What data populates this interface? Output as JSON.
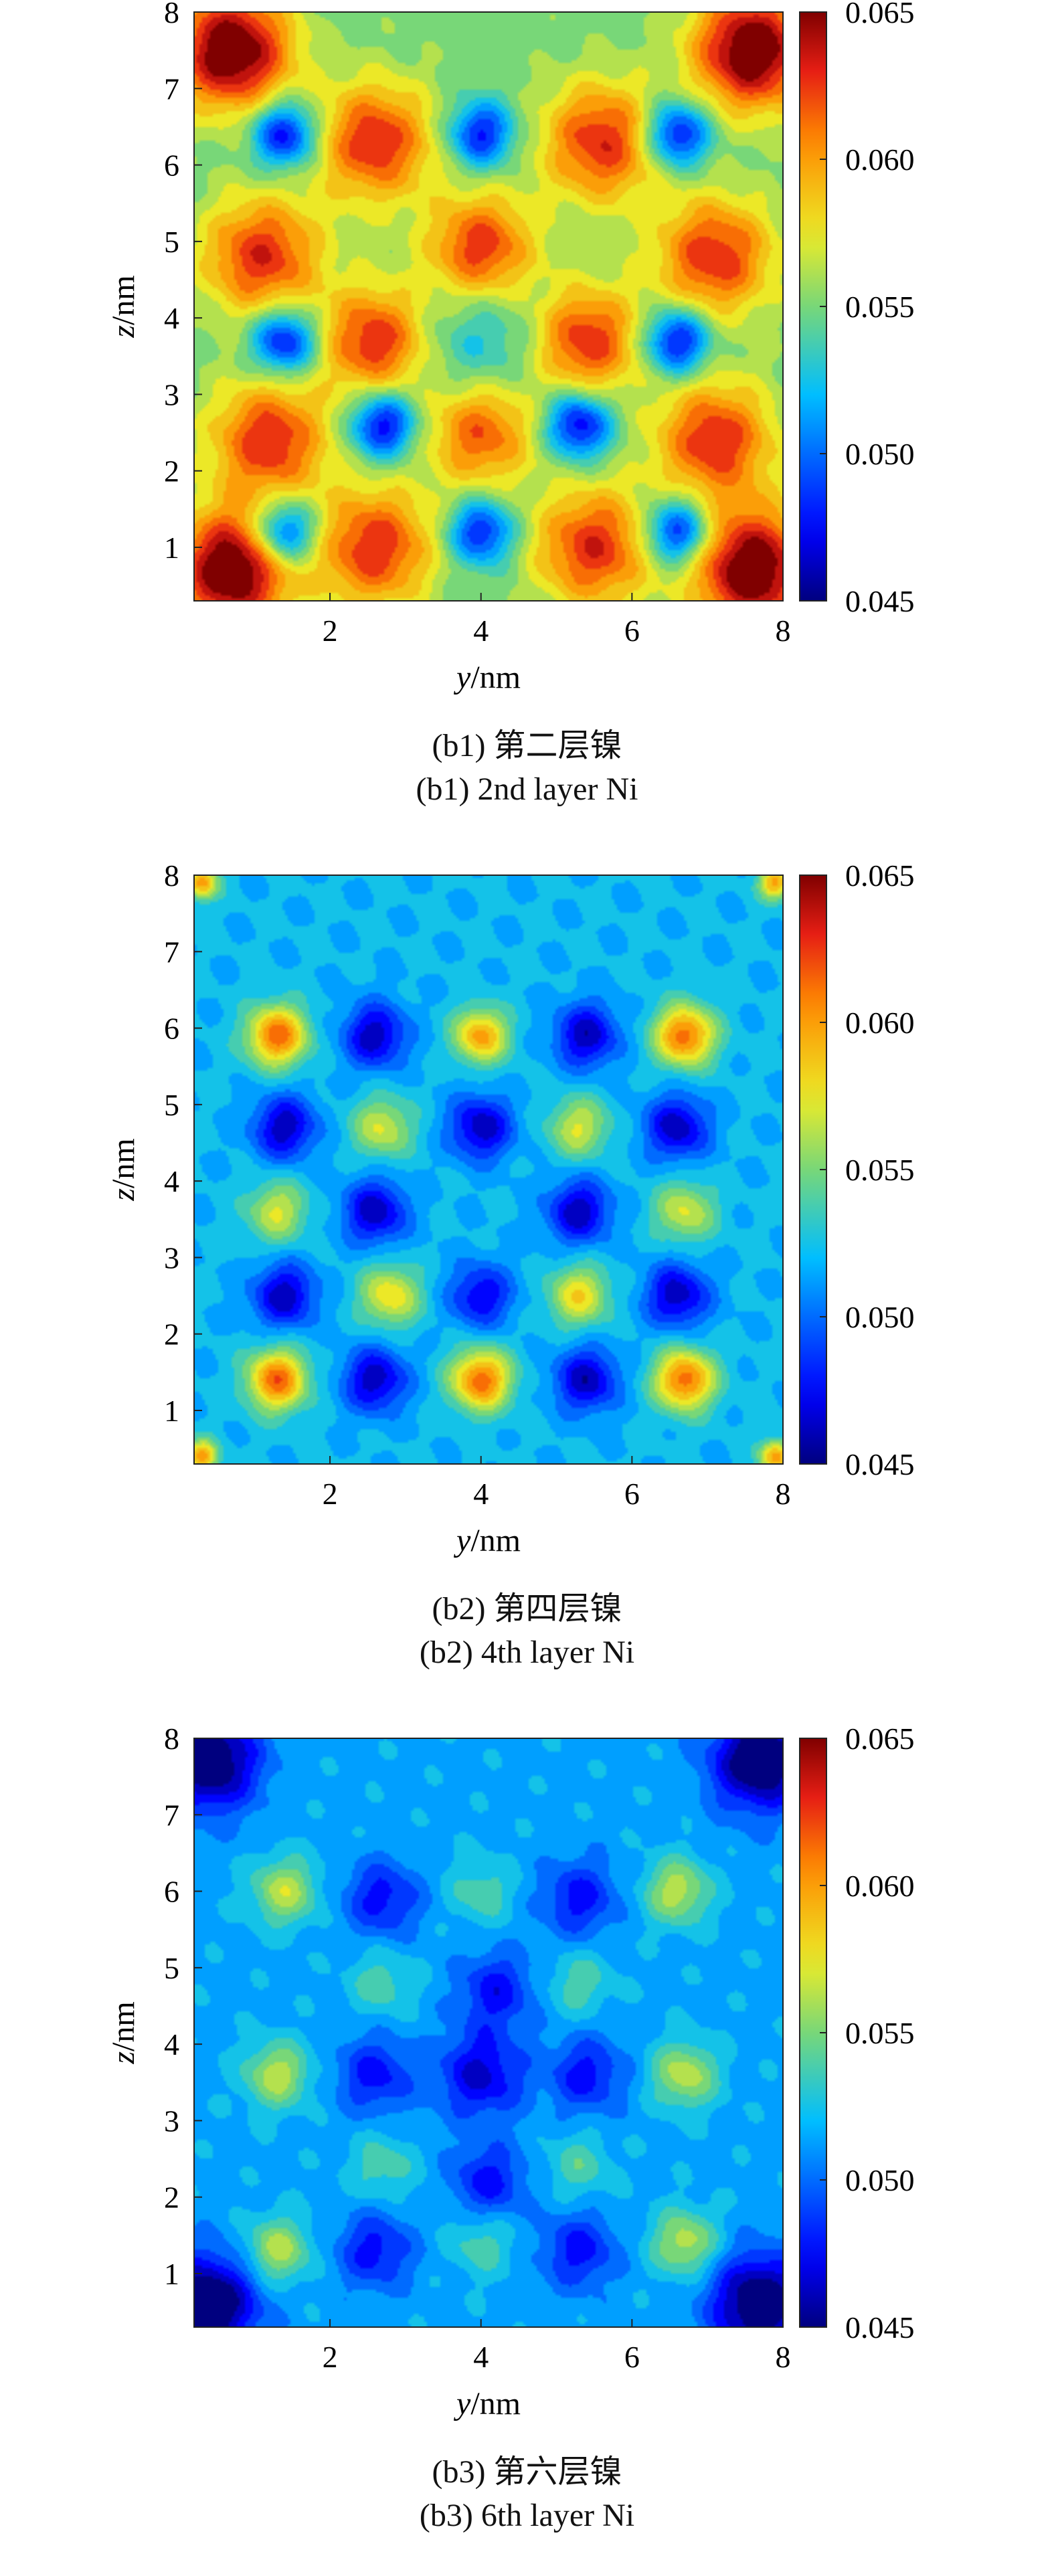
{
  "chart_data": [
    {
      "type": "heatmap",
      "caption_cn": "(b1) 第二层镍",
      "caption_en": "(b1) 2nd layer Ni",
      "xlabel_italic": "y",
      "xlabel_unit": "/nm",
      "ylabel_italic": "z",
      "ylabel_unit": "/nm",
      "xlim": [
        0.2,
        8
      ],
      "ylim": [
        0.3,
        8
      ],
      "xticks": [
        2,
        4,
        6,
        8
      ],
      "yticks": [
        1,
        2,
        3,
        4,
        5,
        6,
        7,
        8
      ],
      "clim": [
        0.045,
        0.065
      ],
      "cticks": [
        "0.045",
        "0.050",
        "0.055",
        "0.060",
        "0.065"
      ],
      "base": 0.055,
      "features": [
        [
          0.7,
          7.5,
          0.0115,
          0.55
        ],
        [
          7.6,
          7.5,
          0.0115,
          0.55
        ],
        [
          0.7,
          0.7,
          0.0115,
          0.55
        ],
        [
          7.6,
          0.7,
          0.0115,
          0.55
        ],
        [
          2.6,
          6.3,
          0.008,
          0.55
        ],
        [
          5.6,
          6.3,
          0.008,
          0.55
        ],
        [
          4.0,
          4.9,
          0.008,
          0.5
        ],
        [
          1.1,
          4.8,
          0.008,
          0.55
        ],
        [
          7.1,
          4.8,
          0.008,
          0.55
        ],
        [
          2.6,
          3.7,
          0.008,
          0.5
        ],
        [
          5.4,
          3.7,
          0.008,
          0.5
        ],
        [
          1.2,
          2.4,
          0.008,
          0.55
        ],
        [
          7.1,
          2.4,
          0.008,
          0.55
        ],
        [
          4.0,
          2.5,
          0.007,
          0.5
        ],
        [
          2.6,
          1.0,
          0.008,
          0.55
        ],
        [
          5.5,
          1.0,
          0.008,
          0.55
        ],
        [
          1.4,
          6.4,
          -0.0085,
          0.3
        ],
        [
          4.0,
          6.4,
          -0.0075,
          0.3
        ],
        [
          6.6,
          6.4,
          -0.0085,
          0.3
        ],
        [
          1.4,
          3.7,
          -0.0085,
          0.3
        ],
        [
          4.0,
          3.7,
          -0.003,
          0.6
        ],
        [
          6.6,
          3.7,
          -0.0085,
          0.3
        ],
        [
          2.7,
          2.6,
          -0.0085,
          0.3
        ],
        [
          5.3,
          2.6,
          -0.0085,
          0.3
        ],
        [
          1.4,
          1.2,
          -0.0085,
          0.3
        ],
        [
          4.0,
          1.2,
          -0.0075,
          0.3
        ],
        [
          6.6,
          1.2,
          -0.0085,
          0.3
        ]
      ]
    },
    {
      "type": "heatmap",
      "caption_cn": "(b2) 第四层镍",
      "caption_en": "(b2) 4th layer Ni",
      "xlabel_italic": "y",
      "xlabel_unit": "/nm",
      "ylabel_italic": "z",
      "ylabel_unit": "/nm",
      "xlim": [
        0.2,
        8
      ],
      "ylim": [
        0.3,
        8
      ],
      "xticks": [
        2,
        4,
        6,
        8
      ],
      "yticks": [
        1,
        2,
        3,
        4,
        5,
        6,
        7,
        8
      ],
      "clim": [
        0.045,
        0.065
      ],
      "cticks": [
        "0.045",
        "0.050",
        "0.055",
        "0.060",
        "0.065"
      ],
      "base": 0.052,
      "features": [
        [
          1.3,
          5.9,
          0.0095,
          0.28
        ],
        [
          4.0,
          5.9,
          0.008,
          0.25
        ],
        [
          6.7,
          5.9,
          0.0095,
          0.28
        ],
        [
          1.3,
          1.4,
          0.0095,
          0.28
        ],
        [
          4.0,
          1.4,
          0.0095,
          0.28
        ],
        [
          6.7,
          1.4,
          0.0095,
          0.28
        ],
        [
          2.7,
          4.7,
          0.005,
          0.28
        ],
        [
          5.3,
          4.7,
          0.005,
          0.28
        ],
        [
          1.3,
          3.6,
          0.005,
          0.28
        ],
        [
          6.7,
          3.6,
          0.005,
          0.28
        ],
        [
          2.8,
          2.5,
          0.006,
          0.28
        ],
        [
          5.3,
          2.5,
          0.006,
          0.28
        ],
        [
          2.6,
          5.9,
          -0.006,
          0.3
        ],
        [
          5.4,
          5.9,
          -0.006,
          0.3
        ],
        [
          1.4,
          4.7,
          -0.006,
          0.3
        ],
        [
          4.0,
          4.7,
          -0.006,
          0.3
        ],
        [
          6.6,
          4.7,
          -0.006,
          0.3
        ],
        [
          2.6,
          3.6,
          -0.006,
          0.3
        ],
        [
          5.3,
          3.6,
          -0.006,
          0.3
        ],
        [
          1.4,
          2.5,
          -0.006,
          0.3
        ],
        [
          4.0,
          2.5,
          -0.005,
          0.3
        ],
        [
          6.6,
          2.5,
          -0.006,
          0.3
        ],
        [
          2.6,
          1.4,
          -0.006,
          0.3
        ],
        [
          5.4,
          1.4,
          -0.006,
          0.3
        ],
        [
          0.3,
          7.9,
          0.008,
          0.15
        ],
        [
          7.9,
          7.9,
          0.008,
          0.15
        ],
        [
          0.3,
          0.4,
          0.008,
          0.15
        ],
        [
          7.9,
          0.4,
          0.008,
          0.15
        ]
      ]
    },
    {
      "type": "heatmap",
      "caption_cn": "(b3) 第六层镍",
      "caption_en": "(b3) 6th layer Ni",
      "xlabel_italic": "y",
      "xlabel_unit": "/nm",
      "ylabel_italic": "z",
      "ylabel_unit": "/nm",
      "xlim": [
        0.2,
        8
      ],
      "ylim": [
        0.3,
        8
      ],
      "xticks": [
        2,
        4,
        6,
        8
      ],
      "yticks": [
        1,
        2,
        3,
        4,
        5,
        6,
        7,
        8
      ],
      "clim": [
        0.045,
        0.065
      ],
      "cticks": [
        "0.045",
        "0.050",
        "0.055",
        "0.060",
        "0.065"
      ],
      "base": 0.0515,
      "features": [
        [
          1.4,
          6.0,
          0.005,
          0.3
        ],
        [
          6.6,
          6.0,
          0.005,
          0.3
        ],
        [
          1.3,
          3.6,
          0.005,
          0.3
        ],
        [
          6.7,
          3.6,
          0.005,
          0.3
        ],
        [
          1.3,
          1.3,
          0.005,
          0.3
        ],
        [
          6.7,
          1.4,
          0.005,
          0.3
        ],
        [
          4.0,
          6.0,
          0.0025,
          0.3
        ],
        [
          4.0,
          1.4,
          0.0025,
          0.3
        ],
        [
          2.7,
          2.4,
          0.0025,
          0.3
        ],
        [
          5.3,
          2.4,
          0.0025,
          0.3
        ],
        [
          2.7,
          4.8,
          0.0025,
          0.3
        ],
        [
          5.3,
          4.8,
          0.0025,
          0.3
        ],
        [
          0.4,
          7.7,
          -0.008,
          0.45
        ],
        [
          7.7,
          7.7,
          -0.008,
          0.45
        ],
        [
          0.4,
          0.6,
          -0.008,
          0.45
        ],
        [
          7.7,
          0.6,
          -0.008,
          0.45
        ],
        [
          4.0,
          3.6,
          -0.005,
          0.4
        ],
        [
          5.3,
          5.9,
          -0.004,
          0.35
        ],
        [
          2.7,
          5.9,
          -0.004,
          0.35
        ],
        [
          2.6,
          3.6,
          -0.004,
          0.35
        ],
        [
          5.4,
          3.6,
          -0.004,
          0.35
        ],
        [
          2.6,
          1.3,
          -0.004,
          0.35
        ],
        [
          5.3,
          1.3,
          -0.004,
          0.35
        ],
        [
          4.1,
          2.2,
          -0.004,
          0.35
        ],
        [
          4.2,
          4.7,
          -0.004,
          0.35
        ]
      ]
    }
  ]
}
